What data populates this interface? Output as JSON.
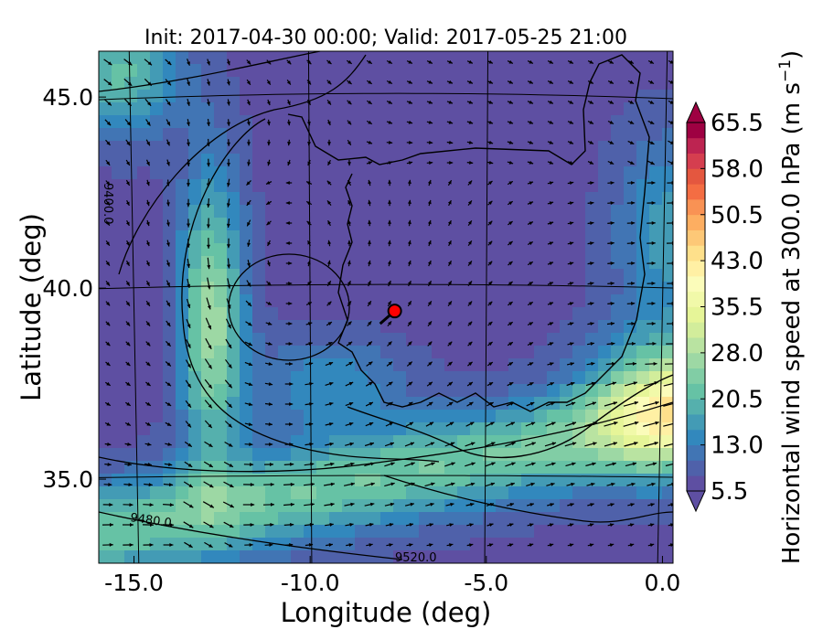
{
  "chart_data": {
    "type": "heatmap",
    "title": "Init: 2017-04-30 00:00; Valid: 2017-05-25 21:00",
    "xlabel": "Longitude (deg)",
    "ylabel": "Latitude (deg)",
    "xlim": [
      -16.0,
      0.3
    ],
    "ylim": [
      32.8,
      46.2
    ],
    "x_ticks": [
      {
        "value": -15.0,
        "label": "-15.0"
      },
      {
        "value": -10.0,
        "label": "-10.0"
      },
      {
        "value": -5.0,
        "label": "-5.0"
      },
      {
        "value": 0.0,
        "label": "0.0"
      }
    ],
    "y_ticks": [
      {
        "value": 35.0,
        "label": "35.0"
      },
      {
        "value": 40.0,
        "label": "40.0"
      },
      {
        "value": 45.0,
        "label": "45.0"
      }
    ],
    "colorbar": {
      "label_main": "Horizontal wind speed at 300.0 hPa (m s",
      "label_exp": "−1",
      "label_close": ")",
      "min": 5.5,
      "max": 65.5,
      "step": 2.5,
      "extend": "both",
      "tick_labels": [
        "5.5",
        "13.0",
        "20.5",
        "28.0",
        "35.5",
        "43.0",
        "50.5",
        "58.0",
        "65.5"
      ],
      "colors": [
        "#5e4fa2",
        "#4f61aa",
        "#4175b4",
        "#3288bd",
        "#439bb5",
        "#55b0ad",
        "#66c2a5",
        "#81cda5",
        "#9dd8a4",
        "#b9e3a1",
        "#d2ed9b",
        "#e6f598",
        "#f1f9a9",
        "#fbfcba",
        "#fff0a4",
        "#fee08b",
        "#fdc877",
        "#fdae61",
        "#f99254",
        "#f46d43",
        "#e4573f",
        "#d53e4f",
        "#bd2451",
        "#9e0142"
      ]
    },
    "contour_labels": [
      "9400.0",
      "9480.0",
      "9520.0"
    ],
    "marker": {
      "lon": -7.6,
      "lat": 39.4,
      "color": "#ff0000"
    },
    "wind_field_note": "speed grid ~ (lon,lat) in data units",
    "speed_features": [
      {
        "lon": -12.8,
        "lat": 39.0,
        "speed": 27
      },
      {
        "lon": -6.0,
        "lat": 35.5,
        "speed": 22
      },
      {
        "lon": 0.0,
        "lat": 37.0,
        "speed": 30
      },
      {
        "lon": -15.0,
        "lat": 45.5,
        "speed": 22
      },
      {
        "lon": -14.0,
        "lat": 33.2,
        "speed": 24
      }
    ]
  }
}
